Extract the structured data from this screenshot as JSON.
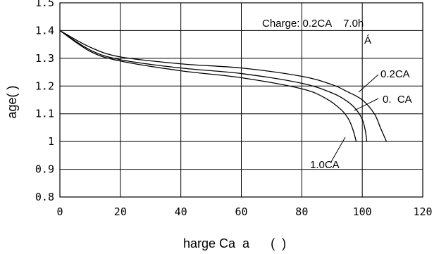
{
  "chart_data": {
    "type": "line",
    "xlabel": "harge Ca  a      (  )",
    "ylabel": "age(  )",
    "xlim": [
      0,
      120
    ],
    "ylim": [
      0.8,
      1.5
    ],
    "x_ticks": [
      "0",
      "20",
      "40",
      "60",
      "80",
      "100",
      "120"
    ],
    "y_ticks": [
      "0.8",
      "0.9",
      "1",
      "1.1",
      "1.2",
      "1.3",
      "1.4",
      "1.5"
    ],
    "grid": true,
    "annotations": [
      {
        "id": "charge",
        "text": "Charge: 0.2CA    7.0h"
      },
      {
        "id": "temp",
        "text": "Á"
      }
    ],
    "series": [
      {
        "name": "0.2CA",
        "x": [
          0,
          10,
          20,
          40,
          60,
          80,
          90,
          95,
          100,
          104,
          106,
          108
        ],
        "y": [
          1.4,
          1.34,
          1.305,
          1.28,
          1.265,
          1.235,
          1.205,
          1.18,
          1.15,
          1.1,
          1.05,
          1.0
        ]
      },
      {
        "name": "0.  CA",
        "x": [
          0,
          10,
          20,
          40,
          60,
          80,
          90,
          95,
          98,
          100,
          101,
          101.5
        ],
        "y": [
          1.4,
          1.33,
          1.295,
          1.265,
          1.245,
          1.21,
          1.175,
          1.145,
          1.115,
          1.08,
          1.04,
          1.0
        ]
      },
      {
        "name": "1.0CA",
        "x": [
          0,
          10,
          20,
          40,
          60,
          80,
          88,
          93,
          95.5,
          97,
          98
        ],
        "y": [
          1.4,
          1.325,
          1.29,
          1.255,
          1.23,
          1.19,
          1.155,
          1.115,
          1.08,
          1.04,
          1.0
        ]
      }
    ]
  }
}
